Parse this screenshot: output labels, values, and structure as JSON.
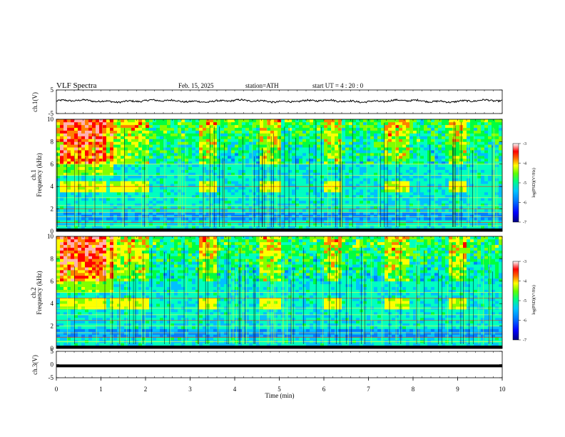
{
  "header": {
    "title": "VLF  Spectra",
    "date": "Feb. 15, 2025",
    "station": "station=ATH",
    "start": "start  UT  =   4  : 20 : 0"
  },
  "chart_data": [
    {
      "id": "ch1-timeseries",
      "type": "line",
      "ylabel": "ch.1(V)",
      "ylim": [
        -5,
        5
      ],
      "yticks": [
        "5",
        "-5"
      ],
      "xlim": [
        0,
        10
      ],
      "trace_level_v": 0.3,
      "trace_amplitude_v": 0.6
    },
    {
      "id": "ch1-spectrogram",
      "type": "heatmap",
      "ylabel": "ch.1\nFrequency (kHz)",
      "xlim": [
        0,
        10
      ],
      "ylim": [
        0,
        10
      ],
      "yticks": [
        "0",
        "2",
        "4",
        "6",
        "8",
        "10"
      ],
      "bands_khz": [
        0.5,
        0.8,
        1.3,
        1.7,
        2.0,
        2.3,
        3.0,
        4.0,
        5.0,
        6.0
      ],
      "bursts_min": [
        [
          0.1,
          1.1
        ],
        [
          1.2,
          2.1
        ],
        [
          3.2,
          3.6
        ],
        [
          4.6,
          5.0
        ],
        [
          6.0,
          6.4
        ],
        [
          7.4,
          7.9
        ],
        [
          8.8,
          9.2
        ]
      ],
      "colorbar": {
        "label": "log(PSD)(V²/Hz)",
        "range": [
          -7,
          -3
        ],
        "ticks": [
          "-3",
          "-4",
          "-5",
          "-6",
          "-7"
        ]
      }
    },
    {
      "id": "ch2-spectrogram",
      "type": "heatmap",
      "ylabel": "ch.2\nFrequency (kHz)",
      "xlim": [
        0,
        10
      ],
      "ylim": [
        0,
        10
      ],
      "yticks": [
        "0",
        "2",
        "4",
        "6",
        "8",
        "10"
      ],
      "bands_khz": [
        0.6,
        1.0,
        1.4,
        2.0,
        2.5,
        3.0,
        3.6,
        4.5,
        5.0
      ],
      "bursts_min": [
        [
          0.1,
          1.1
        ],
        [
          1.2,
          2.1
        ],
        [
          3.2,
          3.6
        ],
        [
          4.6,
          5.0
        ],
        [
          6.0,
          6.4
        ],
        [
          7.4,
          7.9
        ],
        [
          8.8,
          9.2
        ]
      ],
      "colorbar": {
        "label": "log(PSD)(V²/Hz)",
        "range": [
          -7,
          -3
        ],
        "ticks": [
          "-3",
          "-4",
          "-5",
          "-6",
          "-7"
        ]
      }
    },
    {
      "id": "ch3-timeseries",
      "type": "line",
      "ylabel": "ch.3(V)",
      "ylim": [
        -5,
        5
      ],
      "yticks": [
        "5",
        "0",
        "-5"
      ],
      "xlim": [
        0,
        10
      ],
      "trace_level_v": -0.5
    }
  ],
  "xaxis": {
    "label": "Time  (min)",
    "ticks": [
      "0",
      "1",
      "2",
      "3",
      "4",
      "5",
      "6",
      "7",
      "8",
      "9",
      "10"
    ]
  },
  "colors": {
    "colormap": [
      "#000080",
      "#0000ff",
      "#0080ff",
      "#00c0ff",
      "#00ffc0",
      "#00ff40",
      "#80ff00",
      "#ffff00",
      "#ff8000",
      "#ff0000",
      "#ffb0b0",
      "#ffffff"
    ]
  }
}
